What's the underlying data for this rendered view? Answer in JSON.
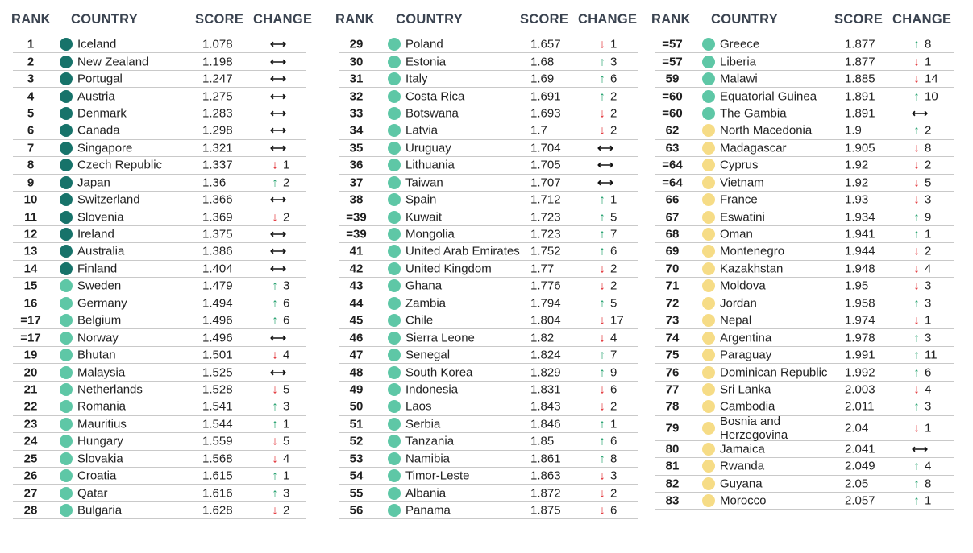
{
  "headers": {
    "rank": "RANK",
    "country": "COUNTRY",
    "score": "SCORE",
    "change": "CHANGE"
  },
  "colors": {
    "very_high": "#17736a",
    "high": "#5ec7a6",
    "medium": "#f6dc86",
    "up": "#1e9e6a",
    "down": "#e0262b"
  },
  "columns": [
    [
      {
        "rank": "1",
        "country": "Iceland",
        "score": "1.078",
        "dir": "same",
        "change": "",
        "level": "d1"
      },
      {
        "rank": "2",
        "country": "New Zealand",
        "score": "1.198",
        "dir": "same",
        "change": "",
        "level": "d1"
      },
      {
        "rank": "3",
        "country": "Portugal",
        "score": "1.247",
        "dir": "same",
        "change": "",
        "level": "d1"
      },
      {
        "rank": "4",
        "country": "Austria",
        "score": "1.275",
        "dir": "same",
        "change": "",
        "level": "d1"
      },
      {
        "rank": "5",
        "country": "Denmark",
        "score": "1.283",
        "dir": "same",
        "change": "",
        "level": "d1"
      },
      {
        "rank": "6",
        "country": "Canada",
        "score": "1.298",
        "dir": "same",
        "change": "",
        "level": "d1"
      },
      {
        "rank": "7",
        "country": "Singapore",
        "score": "1.321",
        "dir": "same",
        "change": "",
        "level": "d1"
      },
      {
        "rank": "8",
        "country": "Czech Republic",
        "score": "1.337",
        "dir": "down",
        "change": "1",
        "level": "d1"
      },
      {
        "rank": "9",
        "country": "Japan",
        "score": "1.36",
        "dir": "up",
        "change": "2",
        "level": "d1"
      },
      {
        "rank": "10",
        "country": "Switzerland",
        "score": "1.366",
        "dir": "same",
        "change": "",
        "level": "d1"
      },
      {
        "rank": "11",
        "country": "Slovenia",
        "score": "1.369",
        "dir": "down",
        "change": "2",
        "level": "d1"
      },
      {
        "rank": "12",
        "country": "Ireland",
        "score": "1.375",
        "dir": "same",
        "change": "",
        "level": "d1"
      },
      {
        "rank": "13",
        "country": "Australia",
        "score": "1.386",
        "dir": "same",
        "change": "",
        "level": "d1"
      },
      {
        "rank": "14",
        "country": "Finland",
        "score": "1.404",
        "dir": "same",
        "change": "",
        "level": "d1"
      },
      {
        "rank": "15",
        "country": "Sweden",
        "score": "1.479",
        "dir": "up",
        "change": "3",
        "level": "d2"
      },
      {
        "rank": "16",
        "country": "Germany",
        "score": "1.494",
        "dir": "up",
        "change": "6",
        "level": "d2"
      },
      {
        "rank": "=17",
        "country": "Belgium",
        "score": "1.496",
        "dir": "up",
        "change": "6",
        "level": "d2"
      },
      {
        "rank": "=17",
        "country": "Norway",
        "score": "1.496",
        "dir": "same",
        "change": "",
        "level": "d2"
      },
      {
        "rank": "19",
        "country": "Bhutan",
        "score": "1.501",
        "dir": "down",
        "change": "4",
        "level": "d2"
      },
      {
        "rank": "20",
        "country": "Malaysia",
        "score": "1.525",
        "dir": "same",
        "change": "",
        "level": "d2"
      },
      {
        "rank": "21",
        "country": "Netherlands",
        "score": "1.528",
        "dir": "down",
        "change": "5",
        "level": "d2"
      },
      {
        "rank": "22",
        "country": "Romania",
        "score": "1.541",
        "dir": "up",
        "change": "3",
        "level": "d2"
      },
      {
        "rank": "23",
        "country": "Mauritius",
        "score": "1.544",
        "dir": "up",
        "change": "1",
        "level": "d2"
      },
      {
        "rank": "24",
        "country": "Hungary",
        "score": "1.559",
        "dir": "down",
        "change": "5",
        "level": "d2"
      },
      {
        "rank": "25",
        "country": "Slovakia",
        "score": "1.568",
        "dir": "down",
        "change": "4",
        "level": "d2"
      },
      {
        "rank": "26",
        "country": "Croatia",
        "score": "1.615",
        "dir": "up",
        "change": "1",
        "level": "d2"
      },
      {
        "rank": "27",
        "country": "Qatar",
        "score": "1.616",
        "dir": "up",
        "change": "3",
        "level": "d2"
      },
      {
        "rank": "28",
        "country": "Bulgaria",
        "score": "1.628",
        "dir": "down",
        "change": "2",
        "level": "d2"
      }
    ],
    [
      {
        "rank": "29",
        "country": "Poland",
        "score": "1.657",
        "dir": "down",
        "change": "1",
        "level": "d2"
      },
      {
        "rank": "30",
        "country": "Estonia",
        "score": "1.68",
        "dir": "up",
        "change": "3",
        "level": "d2"
      },
      {
        "rank": "31",
        "country": "Italy",
        "score": "1.69",
        "dir": "up",
        "change": "6",
        "level": "d2"
      },
      {
        "rank": "32",
        "country": "Costa Rica",
        "score": "1.691",
        "dir": "up",
        "change": "2",
        "level": "d2"
      },
      {
        "rank": "33",
        "country": "Botswana",
        "score": "1.693",
        "dir": "down",
        "change": "2",
        "level": "d2"
      },
      {
        "rank": "34",
        "country": "Latvia",
        "score": "1.7",
        "dir": "down",
        "change": "2",
        "level": "d2"
      },
      {
        "rank": "35",
        "country": "Uruguay",
        "score": "1.704",
        "dir": "same",
        "change": "",
        "level": "d2"
      },
      {
        "rank": "36",
        "country": "Lithuania",
        "score": "1.705",
        "dir": "same",
        "change": "",
        "level": "d2"
      },
      {
        "rank": "37",
        "country": "Taiwan",
        "score": "1.707",
        "dir": "same",
        "change": "",
        "level": "d2"
      },
      {
        "rank": "38",
        "country": "Spain",
        "score": "1.712",
        "dir": "up",
        "change": "1",
        "level": "d2"
      },
      {
        "rank": "=39",
        "country": "Kuwait",
        "score": "1.723",
        "dir": "up",
        "change": "5",
        "level": "d2"
      },
      {
        "rank": "=39",
        "country": "Mongolia",
        "score": "1.723",
        "dir": "up",
        "change": "7",
        "level": "d2"
      },
      {
        "rank": "41",
        "country": "United Arab Emirates",
        "score": "1.752",
        "dir": "up",
        "change": "6",
        "level": "d2"
      },
      {
        "rank": "42",
        "country": "United Kingdom",
        "score": "1.77",
        "dir": "down",
        "change": "2",
        "level": "d2"
      },
      {
        "rank": "43",
        "country": "Ghana",
        "score": "1.776",
        "dir": "down",
        "change": "2",
        "level": "d2"
      },
      {
        "rank": "44",
        "country": "Zambia",
        "score": "1.794",
        "dir": "up",
        "change": "5",
        "level": "d2"
      },
      {
        "rank": "45",
        "country": "Chile",
        "score": "1.804",
        "dir": "down",
        "change": "17",
        "level": "d2"
      },
      {
        "rank": "46",
        "country": "Sierra Leone",
        "score": "1.82",
        "dir": "down",
        "change": "4",
        "level": "d2"
      },
      {
        "rank": "47",
        "country": "Senegal",
        "score": "1.824",
        "dir": "up",
        "change": "7",
        "level": "d2"
      },
      {
        "rank": "48",
        "country": "South Korea",
        "score": "1.829",
        "dir": "up",
        "change": "9",
        "level": "d2"
      },
      {
        "rank": "49",
        "country": "Indonesia",
        "score": "1.831",
        "dir": "down",
        "change": "6",
        "level": "d2"
      },
      {
        "rank": "50",
        "country": "Laos",
        "score": "1.843",
        "dir": "down",
        "change": "2",
        "level": "d2"
      },
      {
        "rank": "51",
        "country": "Serbia",
        "score": "1.846",
        "dir": "up",
        "change": "1",
        "level": "d2"
      },
      {
        "rank": "52",
        "country": "Tanzania",
        "score": "1.85",
        "dir": "up",
        "change": "6",
        "level": "d2"
      },
      {
        "rank": "53",
        "country": "Namibia",
        "score": "1.861",
        "dir": "up",
        "change": "8",
        "level": "d2"
      },
      {
        "rank": "54",
        "country": "Timor-Leste",
        "score": "1.863",
        "dir": "down",
        "change": "3",
        "level": "d2"
      },
      {
        "rank": "55",
        "country": "Albania",
        "score": "1.872",
        "dir": "down",
        "change": "2",
        "level": "d2"
      },
      {
        "rank": "56",
        "country": "Panama",
        "score": "1.875",
        "dir": "down",
        "change": "6",
        "level": "d2"
      }
    ],
    [
      {
        "rank": "=57",
        "country": "Greece",
        "score": "1.877",
        "dir": "up",
        "change": "8",
        "level": "d2"
      },
      {
        "rank": "=57",
        "country": "Liberia",
        "score": "1.877",
        "dir": "down",
        "change": "1",
        "level": "d2"
      },
      {
        "rank": "59",
        "country": "Malawi",
        "score": "1.885",
        "dir": "down",
        "change": "14",
        "level": "d2"
      },
      {
        "rank": "=60",
        "country": "Equatorial Guinea",
        "score": "1.891",
        "dir": "up",
        "change": "10",
        "level": "d2"
      },
      {
        "rank": "=60",
        "country": "The Gambia",
        "score": "1.891",
        "dir": "same",
        "change": "",
        "level": "d2"
      },
      {
        "rank": "62",
        "country": "North Macedonia",
        "score": "1.9",
        "dir": "up",
        "change": "2",
        "level": "d3"
      },
      {
        "rank": "63",
        "country": "Madagascar",
        "score": "1.905",
        "dir": "down",
        "change": "8",
        "level": "d3"
      },
      {
        "rank": "=64",
        "country": "Cyprus",
        "score": "1.92",
        "dir": "down",
        "change": "2",
        "level": "d3"
      },
      {
        "rank": "=64",
        "country": "Vietnam",
        "score": "1.92",
        "dir": "down",
        "change": "5",
        "level": "d3"
      },
      {
        "rank": "66",
        "country": "France",
        "score": "1.93",
        "dir": "down",
        "change": "3",
        "level": "d3"
      },
      {
        "rank": "67",
        "country": "Eswatini",
        "score": "1.934",
        "dir": "up",
        "change": "9",
        "level": "d3"
      },
      {
        "rank": "68",
        "country": "Oman",
        "score": "1.941",
        "dir": "up",
        "change": "1",
        "level": "d3"
      },
      {
        "rank": "69",
        "country": "Montenegro",
        "score": "1.944",
        "dir": "down",
        "change": "2",
        "level": "d3"
      },
      {
        "rank": "70",
        "country": "Kazakhstan",
        "score": "1.948",
        "dir": "down",
        "change": "4",
        "level": "d3"
      },
      {
        "rank": "71",
        "country": "Moldova",
        "score": "1.95",
        "dir": "down",
        "change": "3",
        "level": "d3"
      },
      {
        "rank": "72",
        "country": "Jordan",
        "score": "1.958",
        "dir": "up",
        "change": "3",
        "level": "d3"
      },
      {
        "rank": "73",
        "country": "Nepal",
        "score": "1.974",
        "dir": "down",
        "change": "1",
        "level": "d3"
      },
      {
        "rank": "74",
        "country": "Argentina",
        "score": "1.978",
        "dir": "up",
        "change": "3",
        "level": "d3"
      },
      {
        "rank": "75",
        "country": "Paraguay",
        "score": "1.991",
        "dir": "up",
        "change": "11",
        "level": "d3"
      },
      {
        "rank": "76",
        "country": "Dominican Republic",
        "score": "1.992",
        "dir": "up",
        "change": "6",
        "level": "d3"
      },
      {
        "rank": "77",
        "country": "Sri Lanka",
        "score": "2.003",
        "dir": "down",
        "change": "4",
        "level": "d3"
      },
      {
        "rank": "78",
        "country": "Cambodia",
        "score": "2.011",
        "dir": "up",
        "change": "3",
        "level": "d3"
      },
      {
        "rank": "79",
        "country": "Bosnia and Herzegovina",
        "score": "2.04",
        "dir": "down",
        "change": "1",
        "level": "d3",
        "tall": true
      },
      {
        "rank": "80",
        "country": "Jamaica",
        "score": "2.041",
        "dir": "same",
        "change": "",
        "level": "d3"
      },
      {
        "rank": "81",
        "country": "Rwanda",
        "score": "2.049",
        "dir": "up",
        "change": "4",
        "level": "d3"
      },
      {
        "rank": "82",
        "country": "Guyana",
        "score": "2.05",
        "dir": "up",
        "change": "8",
        "level": "d3"
      },
      {
        "rank": "83",
        "country": "Morocco",
        "score": "2.057",
        "dir": "up",
        "change": "1",
        "level": "d3"
      }
    ]
  ]
}
